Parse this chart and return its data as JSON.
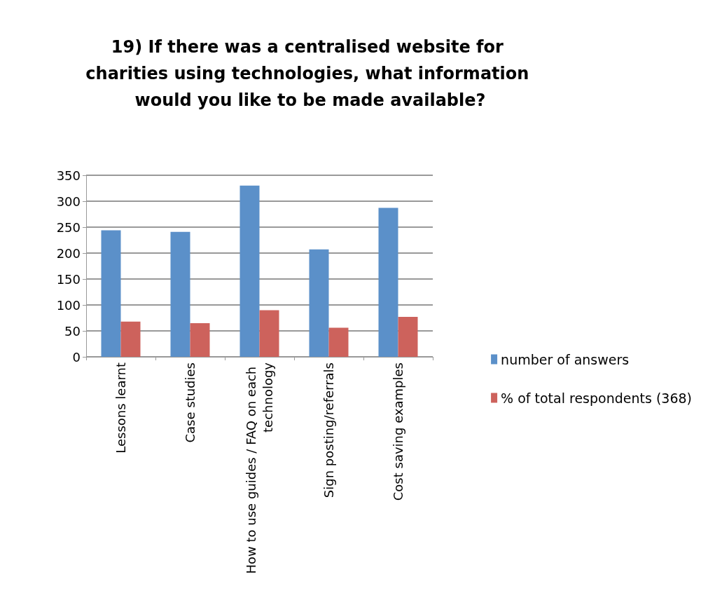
{
  "chart_data": {
    "type": "bar",
    "title": "19) If there was a centralised website for charities using technologies, what information would you like to be made available?",
    "categories": [
      "Lessons learnt",
      "Case studies",
      "How to use guides / FAQ on each technology",
      "Sign posting/referrals",
      "Cost saving examples"
    ],
    "series": [
      {
        "name": "number of answers",
        "color": "#5b90c9",
        "values": [
          244,
          241,
          330,
          207,
          287
        ]
      },
      {
        "name": "% of total respondents (368)",
        "color": "#cd625c",
        "values": [
          68,
          65,
          90,
          56,
          77
        ]
      }
    ],
    "ylim": [
      0,
      350
    ],
    "yticks": [
      0,
      50,
      100,
      150,
      200,
      250,
      300,
      350
    ],
    "grid": "y",
    "legend": "right"
  }
}
